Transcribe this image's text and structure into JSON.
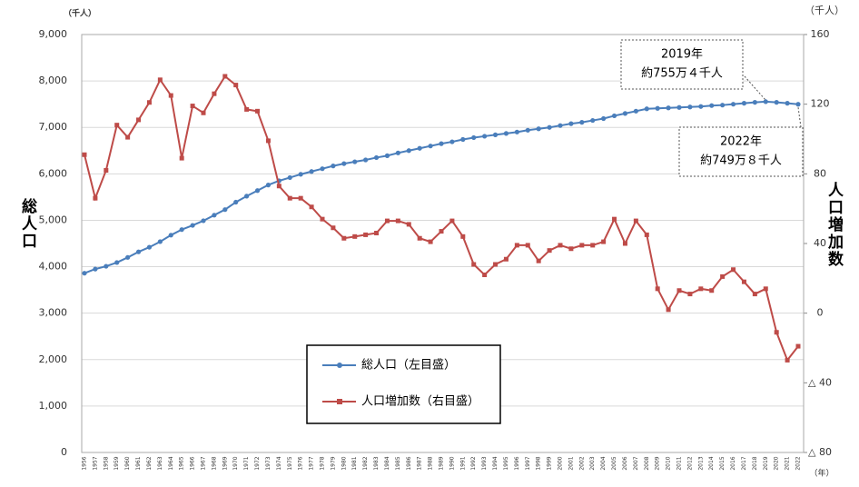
{
  "chart_data": {
    "type": "line",
    "y_unit": "（千人）",
    "y2_unit": "（千人）",
    "x_unit": "（年）",
    "y_label": "総人口",
    "y2_label": "人口増加数",
    "categories": [
      "1956",
      "1957",
      "1958",
      "1959",
      "1960",
      "1961",
      "1962",
      "1963",
      "1964",
      "1965",
      "1966",
      "1967",
      "1968",
      "1969",
      "1970",
      "1971",
      "1972",
      "1973",
      "1974",
      "1975",
      "1976",
      "1977",
      "1978",
      "1979",
      "1980",
      "1981",
      "1982",
      "1983",
      "1984",
      "1985",
      "1986",
      "1987",
      "1988",
      "1989",
      "1990",
      "1991",
      "1992",
      "1993",
      "1994",
      "1995",
      "1996",
      "1997",
      "1998",
      "1999",
      "2000",
      "2001",
      "2002",
      "2003",
      "2004",
      "2005",
      "2006",
      "2007",
      "2008",
      "2009",
      "2010",
      "2011",
      "2012",
      "2013",
      "2014",
      "2015",
      "2016",
      "2017",
      "2018",
      "2019",
      "2020",
      "2021",
      "2022"
    ],
    "series": [
      {
        "name": "総人口（左目盛）",
        "color": "#4a7ebb",
        "values": [
          3860,
          3950,
          4010,
          4090,
          4200,
          4320,
          4420,
          4540,
          4680,
          4800,
          4890,
          4990,
          5110,
          5230,
          5390,
          5520,
          5640,
          5760,
          5850,
          5920,
          5990,
          6050,
          6110,
          6170,
          6220,
          6260,
          6300,
          6350,
          6390,
          6450,
          6500,
          6550,
          6600,
          6650,
          6690,
          6740,
          6780,
          6810,
          6840,
          6870,
          6900,
          6940,
          6970,
          7000,
          7040,
          7080,
          7110,
          7150,
          7190,
          7250,
          7300,
          7350,
          7400,
          7410,
          7420,
          7430,
          7440,
          7450,
          7470,
          7480,
          7500,
          7520,
          7540,
          7554,
          7540,
          7520,
          7498
        ]
      },
      {
        "name": "人口増加数（右目盛）",
        "color": "#be4b48",
        "axis": "y2",
        "values": [
          91,
          66,
          82,
          108,
          101,
          111,
          121,
          134,
          125,
          89,
          119,
          115,
          126,
          136,
          131,
          117,
          116,
          99,
          73,
          66,
          66,
          61,
          54,
          49,
          43,
          44,
          45,
          46,
          53,
          53,
          51,
          43,
          41,
          47,
          53,
          44,
          28,
          22,
          28,
          31,
          39,
          39,
          30,
          36,
          39,
          37,
          39,
          39,
          41,
          54,
          40,
          53,
          45,
          14,
          2,
          13,
          11,
          14,
          13,
          21,
          25,
          18,
          11,
          14,
          -11,
          -27,
          -19
        ]
      }
    ],
    "ylim": [
      0,
      9000
    ],
    "yticks": [
      0,
      {
        "value": 1000,
        "label": "1,000"
      },
      {
        "value": 2000,
        "label": "2,000"
      },
      {
        "value": 3000,
        "label": "3,000"
      },
      {
        "value": 4000,
        "label": "4,000"
      },
      {
        "value": 5000,
        "label": "5,000"
      },
      {
        "value": 6000,
        "label": "6,000"
      },
      {
        "value": 7000,
        "label": "7,000"
      },
      {
        "value": 8000,
        "label": "8,000"
      },
      {
        "value": 9000,
        "label": "9,000"
      }
    ],
    "y2lim": [
      -80,
      160
    ],
    "y2ticks": [
      {
        "value": -80,
        "label": "△ 80"
      },
      {
        "value": -40,
        "label": "△ 40"
      },
      0,
      40,
      80,
      120,
      160
    ],
    "grid": true,
    "annotations": [
      {
        "text": [
          "2019年",
          "約755万４千人"
        ]
      },
      {
        "text": [
          "2022年",
          "約749万８千人"
        ]
      }
    ]
  }
}
